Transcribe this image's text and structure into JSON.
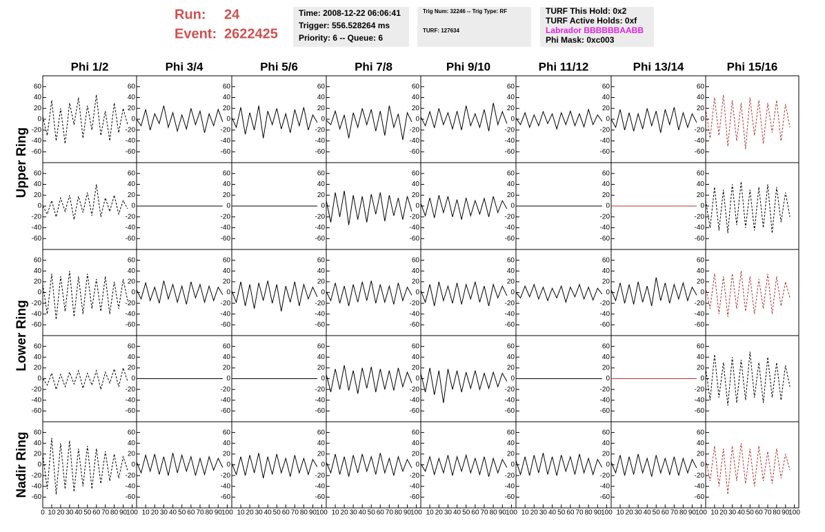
{
  "header": {
    "run_label": "Run:",
    "run": "24",
    "event_label": "Event:",
    "event": "2622425",
    "box1": [
      "Time: 2008-12-22 06:06:41",
      "Trigger: 556.528264 ms",
      "Priority: 6 -- Queue: 6"
    ],
    "box2": [
      "Trig Num: 32246 -- Trig Type: RF",
      "TURF: 127634"
    ],
    "box3": [
      "TURF This Hold: 0x2",
      "TURF Active Holds: 0xf",
      "Labrador BBBBBBAABB",
      "Phi Mask: 0xc003"
    ]
  },
  "chart_data": {
    "type": "line",
    "columns": [
      "Phi 1/2",
      "Phi 3/4",
      "Phi 5/6",
      "Phi 7/8",
      "Phi 9/10",
      "Phi 11/12",
      "Phi 13/14",
      "Phi 15/16"
    ],
    "rings": [
      "Upper Ring",
      "Lower Ring",
      "Nadir Ring"
    ],
    "xlim": [
      0,
      105
    ],
    "xticks": [
      0,
      10,
      20,
      30,
      40,
      50,
      60,
      70,
      80,
      90,
      100
    ],
    "ylim": [
      -80,
      80
    ],
    "yticks": [
      -60,
      -40,
      -20,
      0,
      20,
      40,
      60
    ],
    "x": [
      0,
      5,
      10,
      15,
      20,
      25,
      30,
      35,
      40,
      45,
      50,
      55,
      60,
      65,
      70,
      75,
      80,
      85,
      90,
      95
    ],
    "panels": [
      [
        {
          "color": "#000000",
          "dashed": true,
          "values": [
            5,
            -30,
            35,
            -40,
            20,
            -45,
            30,
            -10,
            40,
            -35,
            25,
            -20,
            45,
            -30,
            15,
            -40,
            30,
            -25,
            20,
            -10
          ]
        },
        {
          "color": "#000000",
          "dashed": false,
          "values": [
            0,
            -12,
            18,
            -20,
            10,
            -8,
            25,
            -15,
            12,
            -22,
            8,
            -18,
            20,
            -10,
            15,
            -25,
            10,
            -12,
            18,
            -5
          ]
        },
        {
          "color": "#000000",
          "dashed": false,
          "values": [
            3,
            -15,
            22,
            -28,
            12,
            -20,
            25,
            -35,
            15,
            -10,
            20,
            -18,
            10,
            -25,
            18,
            -12,
            22,
            -20,
            8,
            -6
          ]
        },
        {
          "color": "#000000",
          "dashed": false,
          "values": [
            -2,
            -10,
            15,
            -18,
            8,
            -35,
            12,
            -15,
            20,
            -10,
            18,
            -22,
            15,
            -30,
            25,
            -15,
            10,
            -38,
            12,
            -5
          ]
        },
        {
          "color": "#000000",
          "dashed": false,
          "values": [
            4,
            -12,
            14,
            -16,
            20,
            -10,
            12,
            -18,
            15,
            -20,
            25,
            -12,
            10,
            -15,
            18,
            -22,
            30,
            -10,
            14,
            -8
          ]
        },
        {
          "color": "#000000",
          "dashed": false,
          "values": [
            2,
            -10,
            12,
            -15,
            8,
            -12,
            14,
            -8,
            10,
            -18,
            12,
            -10,
            15,
            -12,
            10,
            -14,
            18,
            -10,
            8,
            -4
          ]
        },
        {
          "color": "#000000",
          "dashed": false,
          "values": [
            0,
            -15,
            18,
            -20,
            12,
            -22,
            10,
            -18,
            20,
            -12,
            15,
            -25,
            18,
            -10,
            22,
            -20,
            12,
            -15,
            10,
            -6
          ]
        },
        {
          "color": "#b03030",
          "dashed": true,
          "values": [
            20,
            -35,
            40,
            -30,
            45,
            -50,
            35,
            -40,
            30,
            -55,
            40,
            -30,
            35,
            -45,
            30,
            -25,
            35,
            -40,
            28,
            -15
          ]
        }
      ],
      [
        {
          "color": "#000000",
          "dashed": true,
          "values": [
            0,
            -15,
            10,
            -20,
            15,
            -10,
            20,
            -25,
            18,
            -12,
            25,
            -18,
            40,
            -20,
            15,
            -10,
            20,
            -15,
            10,
            -5
          ]
        },
        {
          "color": "#000000",
          "dashed": false,
          "values": [
            0,
            0,
            0,
            0,
            0,
            0,
            0,
            0,
            0,
            0,
            0,
            0,
            0,
            0,
            0,
            0,
            0,
            0,
            0,
            0
          ]
        },
        {
          "color": "#000000",
          "dashed": false,
          "values": [
            0,
            0,
            0,
            0,
            0,
            0,
            0,
            0,
            0,
            0,
            0,
            0,
            0,
            0,
            0,
            0,
            0,
            0,
            0,
            0
          ]
        },
        {
          "color": "#000000",
          "dashed": false,
          "values": [
            10,
            -30,
            25,
            -20,
            28,
            -35,
            20,
            -25,
            18,
            -30,
            22,
            -15,
            25,
            -28,
            20,
            -18,
            15,
            -25,
            18,
            -10
          ]
        },
        {
          "color": "#000000",
          "dashed": false,
          "values": [
            5,
            -18,
            15,
            -22,
            20,
            -12,
            18,
            -20,
            12,
            -25,
            15,
            -18,
            10,
            -15,
            14,
            -20,
            18,
            -12,
            10,
            -5
          ]
        },
        {
          "color": "#000000",
          "dashed": false,
          "values": [
            0,
            0,
            0,
            0,
            0,
            0,
            0,
            0,
            0,
            0,
            0,
            0,
            0,
            0,
            0,
            0,
            0,
            0,
            0,
            0
          ]
        },
        {
          "color": "#b03030",
          "dashed": false,
          "values": [
            0,
            0,
            0,
            0,
            0,
            0,
            0,
            0,
            0,
            0,
            0,
            0,
            0,
            0,
            0,
            0,
            0,
            0,
            0,
            0
          ]
        },
        {
          "color": "#000000",
          "dashed": true,
          "values": [
            10,
            -40,
            35,
            -45,
            30,
            -50,
            40,
            -35,
            45,
            -40,
            30,
            -45,
            35,
            -40,
            40,
            -50,
            35,
            -30,
            25,
            -20
          ]
        }
      ],
      [
        {
          "color": "#000000",
          "dashed": true,
          "values": [
            15,
            -40,
            35,
            -50,
            30,
            -35,
            40,
            -45,
            30,
            -40,
            35,
            -30,
            25,
            -35,
            30,
            -40,
            20,
            -30,
            25,
            -15
          ]
        },
        {
          "color": "#000000",
          "dashed": false,
          "values": [
            5,
            -12,
            18,
            -15,
            10,
            -20,
            22,
            -12,
            15,
            -18,
            12,
            -22,
            20,
            -10,
            15,
            -18,
            12,
            -15,
            10,
            -4
          ]
        },
        {
          "color": "#000000",
          "dashed": false,
          "values": [
            3,
            -18,
            20,
            -25,
            15,
            -30,
            18,
            -15,
            22,
            -20,
            15,
            -35,
            12,
            -18,
            20,
            -25,
            15,
            -12,
            10,
            -8
          ]
        },
        {
          "color": "#000000",
          "dashed": false,
          "values": [
            2,
            -15,
            18,
            -20,
            12,
            -25,
            15,
            -18,
            20,
            -15,
            22,
            -20,
            15,
            -18,
            12,
            -22,
            18,
            -15,
            10,
            -5
          ]
        },
        {
          "color": "#000000",
          "dashed": false,
          "values": [
            4,
            -18,
            15,
            -25,
            20,
            -15,
            12,
            -20,
            18,
            -22,
            15,
            -12,
            20,
            -18,
            12,
            -25,
            15,
            -10,
            12,
            -6
          ]
        },
        {
          "color": "#000000",
          "dashed": false,
          "values": [
            0,
            -10,
            12,
            -8,
            15,
            -12,
            10,
            -15,
            8,
            -10,
            12,
            -18,
            10,
            -8,
            15,
            -12,
            10,
            -14,
            8,
            -3
          ]
        },
        {
          "color": "#000000",
          "dashed": false,
          "values": [
            5,
            -15,
            18,
            -20,
            15,
            -22,
            20,
            -18,
            12,
            -25,
            28,
            -15,
            18,
            -20,
            15,
            -12,
            18,
            -15,
            10,
            -5
          ]
        },
        {
          "color": "#b03030",
          "dashed": true,
          "values": [
            10,
            -30,
            35,
            -40,
            30,
            -45,
            35,
            -30,
            40,
            -35,
            30,
            -40,
            25,
            -30,
            35,
            -40,
            30,
            -25,
            20,
            -10
          ]
        }
      ],
      [
        {
          "color": "#000000",
          "dashed": true,
          "values": [
            0,
            -12,
            10,
            -20,
            8,
            -15,
            12,
            -10,
            15,
            -18,
            10,
            -12,
            15,
            -20,
            12,
            -8,
            18,
            -15,
            20,
            -5
          ]
        },
        {
          "color": "#000000",
          "dashed": false,
          "values": [
            0,
            0,
            0,
            0,
            0,
            0,
            0,
            0,
            0,
            0,
            0,
            0,
            0,
            0,
            0,
            0,
            0,
            0,
            0,
            0
          ]
        },
        {
          "color": "#000000",
          "dashed": false,
          "values": [
            0,
            0,
            0,
            0,
            0,
            0,
            0,
            0,
            0,
            0,
            0,
            0,
            0,
            0,
            0,
            0,
            0,
            0,
            0,
            0
          ]
        },
        {
          "color": "#000000",
          "dashed": false,
          "values": [
            8,
            -25,
            18,
            -20,
            25,
            -22,
            15,
            -28,
            20,
            -18,
            22,
            -25,
            18,
            -20,
            15,
            -22,
            20,
            -15,
            12,
            -8
          ]
        },
        {
          "color": "#000000",
          "dashed": false,
          "values": [
            10,
            -25,
            20,
            -30,
            15,
            -45,
            18,
            -20,
            15,
            -25,
            12,
            -18,
            15,
            -20,
            10,
            -18,
            12,
            -15,
            10,
            -5
          ]
        },
        {
          "color": "#000000",
          "dashed": false,
          "values": [
            0,
            0,
            0,
            0,
            0,
            0,
            0,
            0,
            0,
            0,
            0,
            0,
            0,
            0,
            0,
            0,
            0,
            0,
            0,
            0
          ]
        },
        {
          "color": "#b03030",
          "dashed": false,
          "values": [
            0,
            0,
            0,
            0,
            0,
            0,
            0,
            0,
            0,
            0,
            0,
            0,
            0,
            0,
            0,
            0,
            0,
            0,
            0,
            0
          ]
        },
        {
          "color": "#000000",
          "dashed": true,
          "values": [
            20,
            -40,
            45,
            -35,
            30,
            -50,
            40,
            -45,
            35,
            -40,
            50,
            -35,
            30,
            -45,
            40,
            -35,
            30,
            -40,
            25,
            -15
          ]
        }
      ],
      [
        {
          "color": "#000000",
          "dashed": true,
          "values": [
            20,
            -45,
            50,
            -55,
            40,
            -45,
            45,
            -50,
            30,
            -40,
            35,
            -45,
            30,
            -35,
            25,
            -30,
            20,
            -25,
            15,
            -10
          ]
        },
        {
          "color": "#000000",
          "dashed": false,
          "values": [
            5,
            -15,
            18,
            -12,
            20,
            -18,
            15,
            -20,
            22,
            -15,
            18,
            -12,
            15,
            -20,
            12,
            -18,
            15,
            -10,
            12,
            -5
          ]
        },
        {
          "color": "#000000",
          "dashed": false,
          "values": [
            3,
            -18,
            15,
            -20,
            18,
            -15,
            22,
            -25,
            15,
            -18,
            20,
            -15,
            12,
            -22,
            18,
            -15,
            12,
            -18,
            10,
            -4
          ]
        },
        {
          "color": "#000000",
          "dashed": false,
          "values": [
            5,
            -15,
            20,
            -18,
            15,
            -22,
            18,
            -15,
            20,
            -12,
            15,
            -18,
            22,
            -15,
            12,
            -20,
            15,
            -12,
            10,
            -6
          ]
        },
        {
          "color": "#000000",
          "dashed": false,
          "values": [
            2,
            -12,
            15,
            -18,
            12,
            -15,
            18,
            -20,
            15,
            -12,
            18,
            -15,
            12,
            -18,
            15,
            -22,
            12,
            -15,
            10,
            -5
          ]
        },
        {
          "color": "#000000",
          "dashed": false,
          "values": [
            8,
            -18,
            15,
            -20,
            18,
            -15,
            22,
            -18,
            15,
            -20,
            18,
            -12,
            15,
            -18,
            20,
            -15,
            12,
            -18,
            10,
            -5
          ]
        },
        {
          "color": "#000000",
          "dashed": false,
          "values": [
            5,
            -15,
            18,
            -20,
            15,
            -18,
            20,
            -15,
            12,
            -22,
            18,
            -15,
            12,
            -18,
            15,
            -20,
            12,
            -15,
            10,
            -6
          ]
        },
        {
          "color": "#b03030",
          "dashed": true,
          "values": [
            10,
            -30,
            35,
            -40,
            30,
            -55,
            35,
            -30,
            40,
            -35,
            30,
            -40,
            35,
            -30,
            25,
            -35,
            30,
            -25,
            20,
            -10
          ]
        }
      ]
    ]
  }
}
